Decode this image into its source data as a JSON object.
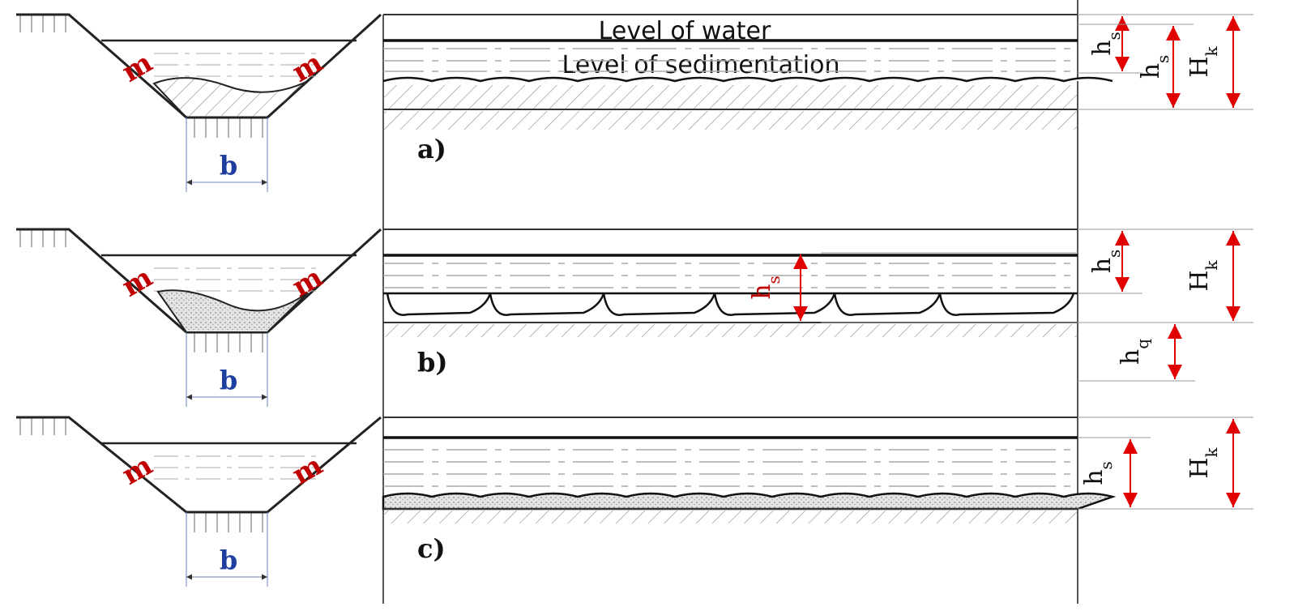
{
  "water_level": "Level of water",
  "sediment_level": "Level of sedimentation",
  "panels": [
    {
      "label": "a)",
      "slope_left": "m",
      "slope_right": "m",
      "bottom_width": "b",
      "dims": [
        {
          "base": "h",
          "sub": "s"
        },
        {
          "base": "h",
          "sub": "s"
        },
        {
          "base": "H",
          "sub": "k"
        }
      ]
    },
    {
      "label": "b)",
      "slope_left": "m",
      "slope_right": "m",
      "bottom_width": "b",
      "dims": [
        {
          "base": "h",
          "sub": "s"
        },
        {
          "base": "h",
          "sub": "s"
        },
        {
          "base": "H",
          "sub": "k"
        },
        {
          "base": "h",
          "sub": "q"
        }
      ]
    },
    {
      "label": "c)",
      "slope_left": "m",
      "slope_right": "m",
      "bottom_width": "b",
      "dims": [
        {
          "base": "h",
          "sub": "s"
        },
        {
          "base": "H",
          "sub": "k"
        }
      ]
    }
  ]
}
